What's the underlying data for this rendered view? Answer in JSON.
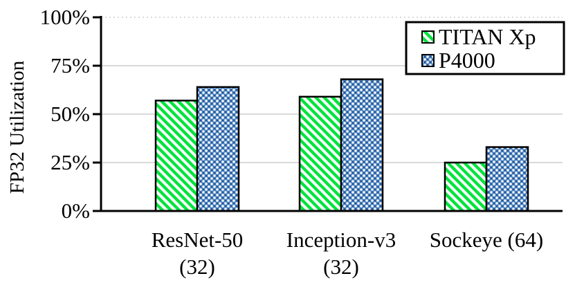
{
  "chart_data": {
    "type": "bar",
    "title": "",
    "ylabel": "FP32 Utilization",
    "xlabel": "",
    "categories": [
      "ResNet-50 (32)",
      "Inception-v3 (32)",
      "Sockeye (64)"
    ],
    "category_lines": [
      [
        "ResNet-50",
        "(32)"
      ],
      [
        "Inception-v3",
        "(32)"
      ],
      [
        "Sockeye (64)"
      ]
    ],
    "series": [
      {
        "name": "TITAN Xp",
        "values": [
          57,
          59,
          25
        ],
        "pattern": "green-diagonal-hatch",
        "pattern_color": "#00e43c"
      },
      {
        "name": "P4000",
        "values": [
          64,
          68,
          33
        ],
        "pattern": "blue-dot-lattice",
        "pattern_color": "#4f86c6"
      }
    ],
    "yticks": [
      0,
      25,
      50,
      75,
      100
    ],
    "ytick_labels": [
      "0%",
      "25%",
      "50%",
      "75%",
      "100%"
    ],
    "ylim": [
      0,
      100
    ],
    "grid": "horizontal",
    "gridline_style": {
      "solid_at": [
        25,
        50,
        75
      ],
      "dotted_at": [
        100
      ]
    },
    "legend_position": "top-right",
    "colors": {
      "background": "#ffffff",
      "grid": "#d9d9d9",
      "axis": "#000000",
      "text": "#000000",
      "bar_border": "#000000",
      "hatch_green": "#00e43c",
      "dot_blue_base": "#5489c5",
      "dot_blue_dark": "#24548f",
      "legend_border": "#000000"
    }
  }
}
